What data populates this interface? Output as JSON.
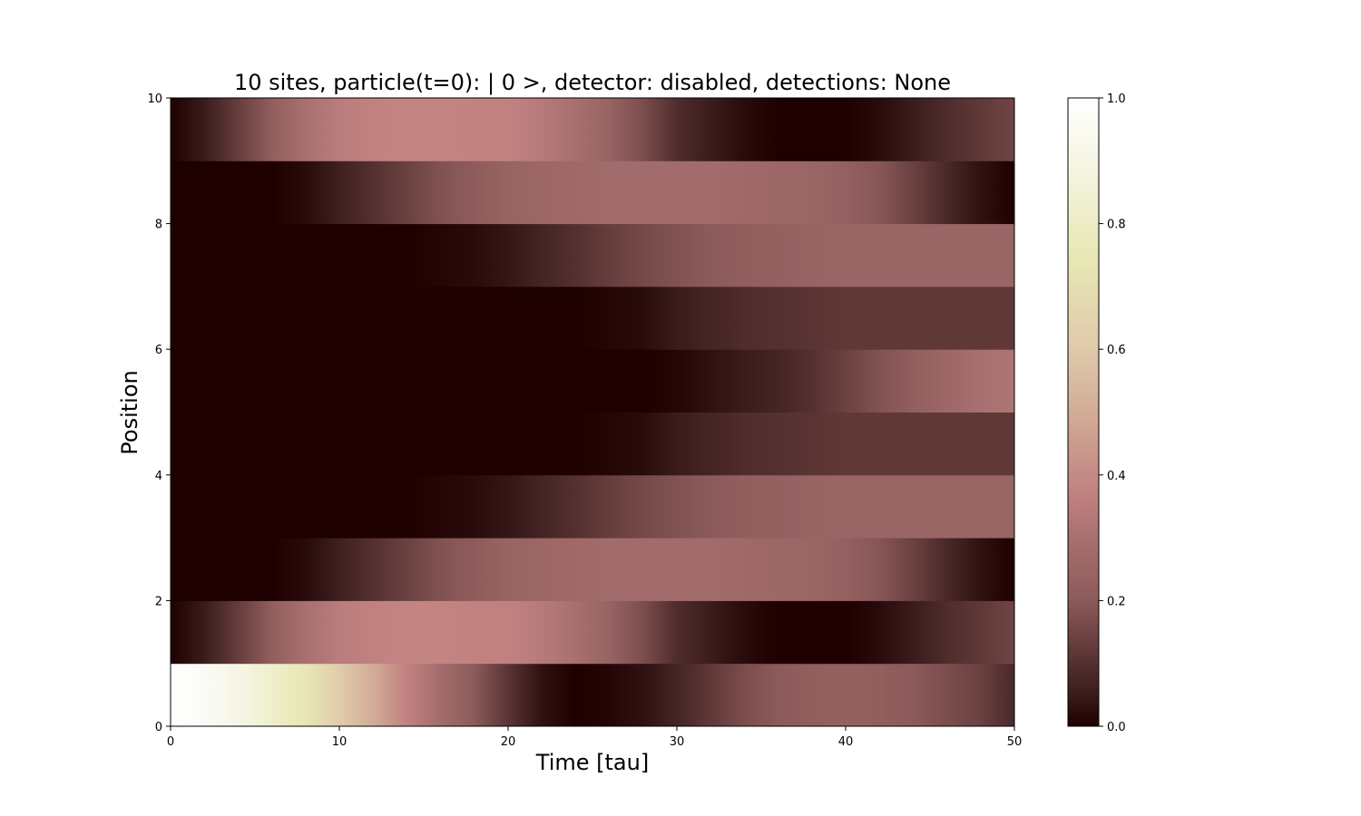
{
  "chart_data": {
    "type": "heatmap",
    "title": "10 sites, particle(t=0): | 0 >, detector: disabled, detections: None",
    "xlabel": "Time [tau]",
    "ylabel": "Position",
    "xlim": [
      0,
      50
    ],
    "ylim": [
      0,
      10
    ],
    "xticks": [
      "0",
      "10",
      "20",
      "30",
      "40",
      "50"
    ],
    "yticks": [
      "0",
      "2",
      "4",
      "6",
      "8",
      "10"
    ],
    "colorbar": {
      "range": [
        0,
        1
      ],
      "ticks": [
        "0.0",
        "0.2",
        "0.4",
        "0.6",
        "0.8",
        "1.0"
      ],
      "colormap": "pink",
      "stops": [
        {
          "v": 0.0,
          "color": "#1e0000"
        },
        {
          "v": 0.05,
          "color": "#3a1c1c"
        },
        {
          "v": 0.1,
          "color": "#553030"
        },
        {
          "v": 0.2,
          "color": "#8c5a5a"
        },
        {
          "v": 0.3,
          "color": "#a87070"
        },
        {
          "v": 0.366,
          "color": "#c08080"
        },
        {
          "v": 0.5,
          "color": "#d2ac96"
        },
        {
          "v": 0.6,
          "color": "#dfc9aa"
        },
        {
          "v": 0.75,
          "color": "#e8e8b5"
        },
        {
          "v": 0.9,
          "color": "#f6f6e6"
        },
        {
          "v": 1.0,
          "color": "#ffffff"
        }
      ]
    },
    "x_samples": [
      0,
      2,
      4,
      6,
      8,
      10,
      12,
      14,
      16,
      18,
      20,
      22,
      24,
      26,
      28,
      30,
      32,
      34,
      36,
      38,
      40,
      42,
      44,
      46,
      48,
      50
    ],
    "sites": [
      {
        "position": 0,
        "values": [
          1.0,
          0.96,
          0.9,
          0.82,
          0.74,
          0.62,
          0.5,
          0.37,
          0.28,
          0.2,
          0.11,
          0.03,
          0.0,
          0.01,
          0.03,
          0.07,
          0.12,
          0.17,
          0.2,
          0.22,
          0.23,
          0.22,
          0.2,
          0.17,
          0.14,
          0.08
        ]
      },
      {
        "position": 1,
        "values": [
          0.0,
          0.05,
          0.13,
          0.22,
          0.3,
          0.35,
          0.37,
          0.38,
          0.38,
          0.37,
          0.37,
          0.34,
          0.3,
          0.24,
          0.17,
          0.09,
          0.05,
          0.02,
          0.0,
          0.0,
          0.0,
          0.02,
          0.05,
          0.09,
          0.12,
          0.15
        ]
      },
      {
        "position": 2,
        "values": [
          0.0,
          0.0,
          0.0,
          0.0,
          0.02,
          0.06,
          0.1,
          0.14,
          0.18,
          0.21,
          0.24,
          0.26,
          0.27,
          0.28,
          0.28,
          0.28,
          0.28,
          0.27,
          0.26,
          0.25,
          0.23,
          0.19,
          0.14,
          0.08,
          0.03,
          0.0
        ]
      },
      {
        "position": 3,
        "values": [
          0.0,
          0.0,
          0.0,
          0.0,
          0.0,
          0.0,
          0.0,
          0.0,
          0.01,
          0.02,
          0.04,
          0.07,
          0.1,
          0.13,
          0.16,
          0.18,
          0.2,
          0.22,
          0.23,
          0.24,
          0.25,
          0.25,
          0.25,
          0.25,
          0.25,
          0.25
        ]
      },
      {
        "position": 4,
        "values": [
          0.0,
          0.0,
          0.0,
          0.0,
          0.0,
          0.0,
          0.0,
          0.0,
          0.0,
          0.0,
          0.0,
          0.0,
          0.0,
          0.01,
          0.02,
          0.05,
          0.07,
          0.09,
          0.1,
          0.11,
          0.12,
          0.12,
          0.12,
          0.12,
          0.12,
          0.12
        ]
      },
      {
        "position": 5,
        "values": [
          0.0,
          0.0,
          0.0,
          0.0,
          0.0,
          0.0,
          0.0,
          0.0,
          0.0,
          0.0,
          0.0,
          0.0,
          0.0,
          0.0,
          0.0,
          0.01,
          0.03,
          0.05,
          0.07,
          0.1,
          0.14,
          0.18,
          0.22,
          0.26,
          0.3,
          0.32
        ]
      },
      {
        "position": 6,
        "values": [
          0.0,
          0.0,
          0.0,
          0.0,
          0.0,
          0.0,
          0.0,
          0.0,
          0.0,
          0.0,
          0.0,
          0.0,
          0.0,
          0.01,
          0.02,
          0.05,
          0.07,
          0.09,
          0.1,
          0.11,
          0.12,
          0.12,
          0.12,
          0.12,
          0.12,
          0.12
        ]
      },
      {
        "position": 7,
        "values": [
          0.0,
          0.0,
          0.0,
          0.0,
          0.0,
          0.0,
          0.0,
          0.0,
          0.01,
          0.02,
          0.04,
          0.07,
          0.1,
          0.13,
          0.16,
          0.18,
          0.2,
          0.22,
          0.23,
          0.24,
          0.25,
          0.25,
          0.25,
          0.25,
          0.25,
          0.25
        ]
      },
      {
        "position": 8,
        "values": [
          0.0,
          0.0,
          0.0,
          0.0,
          0.02,
          0.06,
          0.1,
          0.14,
          0.18,
          0.21,
          0.24,
          0.26,
          0.27,
          0.28,
          0.28,
          0.28,
          0.28,
          0.27,
          0.26,
          0.25,
          0.23,
          0.19,
          0.14,
          0.08,
          0.03,
          0.0
        ]
      },
      {
        "position": 9,
        "values": [
          0.0,
          0.05,
          0.13,
          0.22,
          0.3,
          0.35,
          0.37,
          0.38,
          0.38,
          0.37,
          0.37,
          0.34,
          0.3,
          0.24,
          0.17,
          0.09,
          0.05,
          0.02,
          0.0,
          0.0,
          0.0,
          0.02,
          0.05,
          0.09,
          0.12,
          0.15
        ]
      }
    ]
  }
}
